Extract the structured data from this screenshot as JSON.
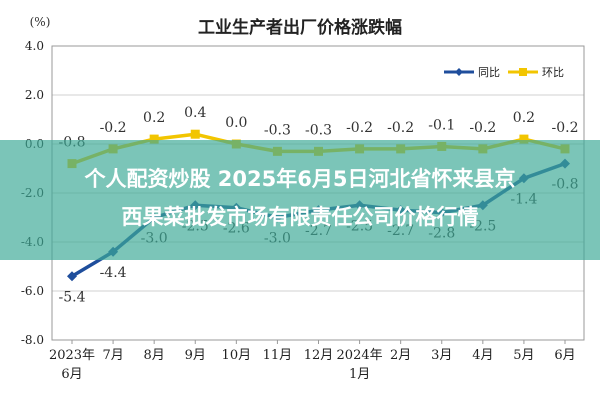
{
  "chart_data": {
    "type": "line",
    "title": "工业生产者出厂价格涨跌幅",
    "ylabel": "(%)",
    "ylim": [
      -8.0,
      4.0
    ],
    "yticks": [
      "4.0",
      "2.0",
      "0.0",
      "-2.0",
      "-4.0",
      "-6.0",
      "-8.0"
    ],
    "ytick_values": [
      4,
      2,
      0,
      -2,
      -4,
      -6,
      -8
    ],
    "categories": [
      "2023年6月",
      "7月",
      "8月",
      "9月",
      "10月",
      "11月",
      "12月",
      "2024年1月",
      "2月",
      "3月",
      "4月",
      "5月",
      "6月"
    ],
    "category_lines": [
      [
        "2023年",
        "6月"
      ],
      [
        "7月"
      ],
      [
        "8月"
      ],
      [
        "9月"
      ],
      [
        "10月"
      ],
      [
        "11月"
      ],
      [
        "12月"
      ],
      [
        "2024年",
        "1月"
      ],
      [
        "2月"
      ],
      [
        "3月"
      ],
      [
        "4月"
      ],
      [
        "5月"
      ],
      [
        "6月"
      ]
    ],
    "grid": true,
    "legend_position": "top-right",
    "series": [
      {
        "name": "同比",
        "color": "#1f4e9c",
        "values": [
          -5.4,
          -4.4,
          -3.0,
          -2.5,
          -2.6,
          -3.0,
          -2.7,
          -2.5,
          -2.7,
          -2.8,
          -2.5,
          -1.4,
          -0.8
        ],
        "labels": [
          "-5.4",
          "-4.4",
          "-3.0",
          "-2.5",
          "-2.6",
          "-3.0",
          "-2.7",
          "-2.5",
          "-2.7",
          "-2.8",
          "-2.5",
          "-1.4",
          "-0.8"
        ]
      },
      {
        "name": "环比",
        "color": "#f2c500",
        "values": [
          -0.8,
          -0.2,
          0.2,
          0.4,
          0.0,
          -0.3,
          -0.3,
          -0.2,
          -0.2,
          -0.1,
          -0.2,
          0.2,
          -0.2
        ],
        "labels": [
          "-0.8",
          "-0.2",
          "0.2",
          "0.4",
          "0.0",
          "-0.3",
          "-0.3",
          "-0.2",
          "-0.2",
          "-0.1",
          "-0.2",
          "0.2",
          "-0.2"
        ]
      }
    ]
  },
  "banner": {
    "line1": "个人配资炒股 2025年6月5日河北省怀来县京",
    "line2": "西果菜批发市场有限责任公司价格行情"
  }
}
